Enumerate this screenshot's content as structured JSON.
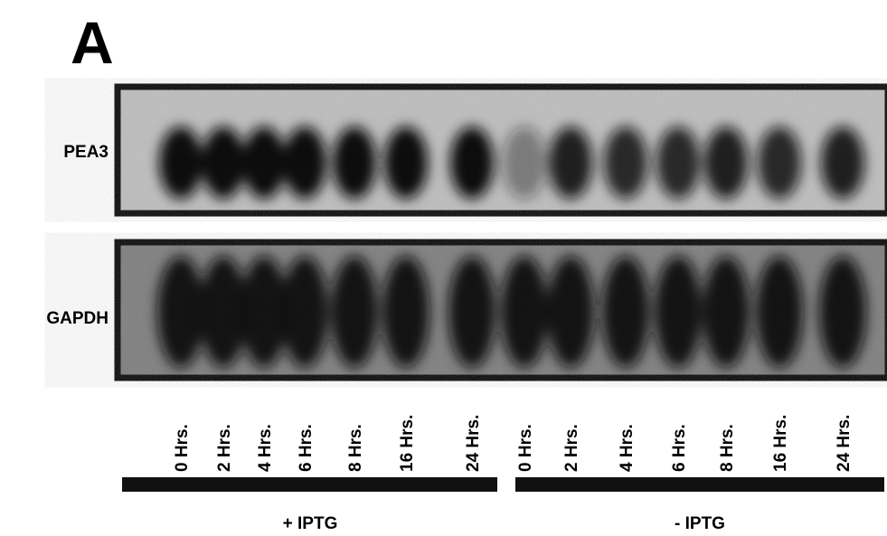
{
  "panel_label": "A",
  "blots": [
    {
      "label": "PEA3"
    },
    {
      "label": "GAPDH"
    }
  ],
  "lanes": [
    "0 Hrs.",
    "2 Hrs.",
    "4 Hrs.",
    "6 Hrs.",
    "8 Hrs.",
    "16 Hrs.",
    "24 Hrs.",
    "0 Hrs.",
    "2 Hrs.",
    "4 Hrs.",
    "6 Hrs.",
    "8 Hrs.",
    "16 Hrs.",
    "24 Hrs."
  ],
  "groups": [
    {
      "label": "+ IPTG"
    },
    {
      "label": "- IPTG"
    }
  ]
}
